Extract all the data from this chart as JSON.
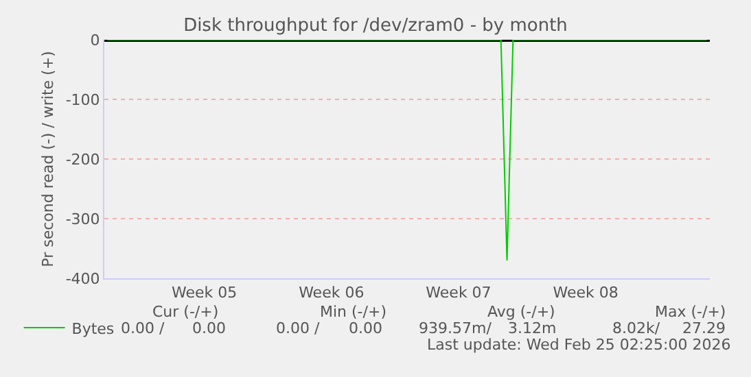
{
  "chart_data": {
    "type": "line",
    "title": "Disk throughput for /dev/zram0 - by month",
    "ylabel": "Pr second read (-) / write (+)",
    "categories": [
      null,
      null,
      null,
      null,
      null,
      null,
      null,
      null,
      null,
      null,
      null,
      null,
      null,
      null,
      null,
      null,
      "Week 05",
      null,
      null,
      null,
      null,
      null,
      null,
      null,
      null,
      null,
      null,
      null,
      null,
      null,
      null,
      null,
      null,
      null,
      null,
      null,
      null,
      "Week 06",
      null,
      null,
      null,
      null,
      null,
      null,
      null,
      null,
      null,
      null,
      null,
      null,
      null,
      null,
      null,
      null,
      null,
      null,
      null,
      null,
      "Week 07",
      null,
      null,
      null,
      null,
      null,
      null,
      null,
      null,
      null,
      null,
      null,
      null,
      null,
      null,
      null,
      null,
      null,
      null,
      null,
      null,
      "Week 08",
      null,
      null,
      null,
      null,
      null,
      null,
      null,
      null,
      null,
      null,
      null,
      null,
      null,
      null,
      null,
      null,
      null,
      null,
      null,
      null
    ],
    "series": [
      {
        "name": "Bytes",
        "color": "#00cc00",
        "values": [
          0,
          0,
          0,
          0,
          0,
          0,
          0,
          0,
          0,
          0,
          0,
          0,
          0,
          0,
          0,
          0,
          0,
          0,
          0,
          0,
          0,
          0,
          0,
          0,
          0,
          0,
          0,
          0,
          0,
          0,
          0,
          0,
          0,
          0,
          0,
          0,
          0,
          0,
          0,
          0,
          0,
          0,
          0,
          0,
          0,
          0,
          0,
          0,
          0,
          0,
          0,
          0,
          0,
          0,
          0,
          0,
          0,
          0,
          0,
          0,
          0,
          0,
          0,
          0,
          0,
          0,
          -370,
          0,
          0,
          0,
          0,
          0,
          0,
          0,
          0,
          0,
          0,
          0,
          0,
          0,
          0,
          0,
          0,
          0,
          0,
          0,
          0,
          0,
          0,
          0,
          0,
          0,
          0,
          0,
          0,
          0,
          0,
          0,
          0,
          0
        ]
      }
    ],
    "ylim": [
      -400,
      0
    ],
    "yticks": [
      -400,
      -300,
      -200,
      -100,
      0
    ],
    "ref_lines": [
      {
        "axis": "y",
        "value": 0,
        "color": "#000000"
      }
    ],
    "grid": "y",
    "legend": "bottom left",
    "marker": "none",
    "line_style": "solid",
    "annotations": [
      "Cur (-/+)",
      "Min (-/+)",
      "Avg (-/+)",
      "Max (-/+)",
      "0.00 /",
      "0.00",
      "0.00 /",
      "0.00",
      "939.57m/",
      "3.12m",
      "8.02k/",
      "27.29",
      "Last update: Wed Feb 25 02:25:00 2026"
    ]
  }
}
